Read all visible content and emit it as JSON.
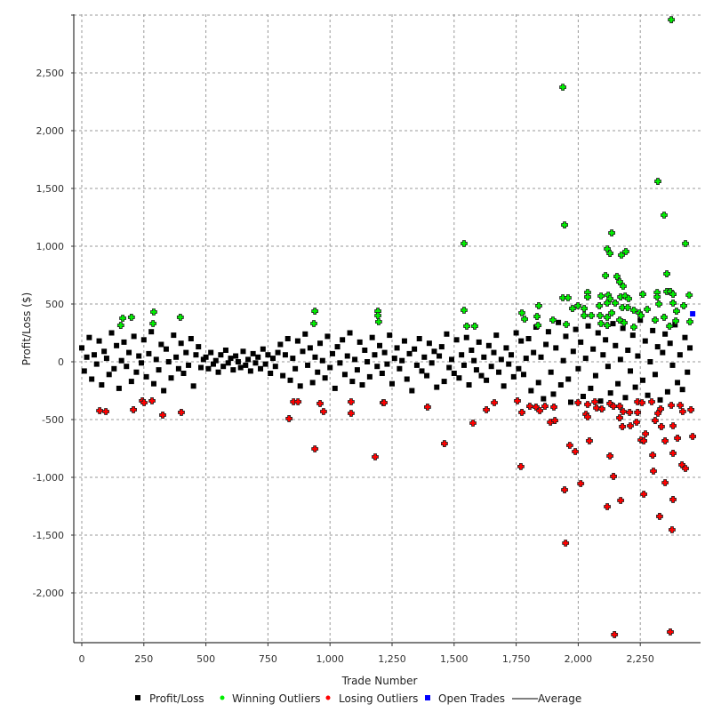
{
  "chart_data": {
    "type": "scatter",
    "title": "",
    "xlabel": "Trade Number",
    "ylabel": "Profit/Loss ($)",
    "xlim": [
      -30,
      2493
    ],
    "ylim": [
      -2431,
      3000
    ],
    "grid": true,
    "legend_placement": "bottom",
    "xticks": [
      0,
      250,
      500,
      750,
      1000,
      1250,
      1500,
      1750,
      2000,
      2250
    ],
    "xtick_labels": [
      "0",
      "250",
      "500",
      "750",
      "1,000",
      "1,250",
      "1,500",
      "1,750",
      "2,000",
      "2,250"
    ],
    "ygrid": [
      -2000,
      -1500,
      -1000,
      -500,
      0,
      500,
      1000,
      1500,
      2000,
      2500,
      3000
    ],
    "yticks": [
      -2000,
      -1500,
      -1000,
      -500,
      0,
      500,
      1000,
      1500,
      2000,
      2500
    ],
    "ytick_labels": [
      "-2,000",
      "-1,500",
      "-1,000",
      "-500",
      "0",
      "500",
      "1,000",
      "1,500",
      "2,000",
      "2,500"
    ],
    "legend": [
      {
        "label": "Profit/Loss",
        "color": "#000000",
        "marker": "square"
      },
      {
        "label": "Winning Outliers",
        "color": "#00ee00",
        "marker": "cross"
      },
      {
        "label": "Losing Outliers",
        "color": "#ff0000",
        "marker": "cross"
      },
      {
        "label": "Open Trades",
        "color": "#0000ff",
        "marker": "square"
      },
      {
        "label": "Average",
        "color": "#000000",
        "marker": "line"
      }
    ],
    "series": [
      {
        "name": "Profit/Loss",
        "color": "#000000",
        "x_step": 10,
        "y": [
          120,
          -80,
          40,
          210,
          -150,
          60,
          -20,
          180,
          -200,
          90,
          30,
          -110,
          250,
          -60,
          140,
          -230,
          10,
          170,
          -40,
          80,
          -170,
          220,
          -90,
          50,
          -10,
          190,
          -130,
          70,
          260,
          -190,
          20,
          -70,
          150,
          -250,
          110,
          0,
          -140,
          230,
          40,
          -60,
          160,
          -100,
          80,
          -30,
          200,
          -210,
          60,
          130,
          -50,
          20,
          40,
          -60,
          80,
          -20,
          10,
          -90,
          60,
          -40,
          100,
          -10,
          30,
          -70,
          50,
          0,
          -50,
          90,
          -30,
          20,
          -80,
          70,
          -10,
          40,
          -60,
          110,
          -20,
          60,
          -100,
          30,
          -40,
          80,
          150,
          -120,
          60,
          200,
          -160,
          30,
          -60,
          180,
          -210,
          90,
          240,
          -30,
          120,
          -180,
          40,
          -90,
          160,
          10,
          -140,
          220,
          -50,
          70,
          -230,
          130,
          -10,
          190,
          -110,
          50,
          250,
          -170,
          20,
          -70,
          170,
          -200,
          100,
          0,
          -130,
          210,
          60,
          -40,
          140,
          -100,
          80,
          -20,
          230,
          -190,
          30,
          120,
          -60,
          10,
          180,
          -150,
          70,
          -250,
          110,
          -30,
          200,
          -80,
          40,
          -120,
          160,
          -10,
          90,
          -220,
          50,
          130,
          -170,
          240,
          -50,
          20,
          -100,
          190,
          -140,
          60,
          -30,
          210,
          -200,
          100,
          10,
          -70,
          170,
          -120,
          40,
          -160,
          140,
          -40,
          80,
          230,
          -90,
          20,
          -210,
          120,
          -20,
          60,
          -130,
          250,
          -60,
          180,
          -110,
          30,
          200,
          -250,
          80,
          300,
          -180,
          40,
          -320,
          150,
          260,
          -90,
          -280,
          120,
          340,
          -200,
          10,
          220,
          -150,
          -350,
          90,
          280,
          -60,
          170,
          -300,
          30,
          310,
          -230,
          110,
          -120,
          250,
          -340,
          60,
          190,
          -40,
          -270,
          330,
          140,
          -190,
          20,
          290,
          -310,
          100,
          -80,
          230,
          -220,
          50,
          360,
          -160,
          180,
          -290,
          0,
          270,
          -110,
          130,
          -330,
          80,
          240,
          -260,
          160,
          -30,
          320,
          -180,
          60,
          -240,
          210,
          -90,
          120
        ]
      },
      {
        "name": "Winning Outliers",
        "color": "#00ee00",
        "points": [
          [
            157,
            315
          ],
          [
            165,
            377
          ],
          [
            200,
            385
          ],
          [
            290,
            431
          ],
          [
            287,
            331
          ],
          [
            397,
            385
          ],
          [
            939,
            438
          ],
          [
            935,
            331
          ],
          [
            1193,
            438
          ],
          [
            1193,
            400
          ],
          [
            1196,
            346
          ],
          [
            1540,
            1023
          ],
          [
            1540,
            446
          ],
          [
            1551,
            308
          ],
          [
            1583,
            308
          ],
          [
            1841,
            485
          ],
          [
            1773,
            423
          ],
          [
            1784,
            369
          ],
          [
            1834,
            392
          ],
          [
            1838,
            315
          ],
          [
            1898,
            361
          ],
          [
            2375,
            2960
          ],
          [
            1938,
            2376
          ],
          [
            2321,
            1561
          ],
          [
            2346,
            1269
          ],
          [
            2432,
            1023
          ],
          [
            1945,
            1184
          ],
          [
            2135,
            1115
          ],
          [
            2117,
            977
          ],
          [
            2128,
            938
          ],
          [
            2174,
            923
          ],
          [
            2192,
            954
          ],
          [
            2110,
            746
          ],
          [
            2156,
            738
          ],
          [
            2167,
            692
          ],
          [
            2181,
            654
          ],
          [
            2357,
            761
          ],
          [
            1938,
            554
          ],
          [
            1959,
            554
          ],
          [
            2038,
            600
          ],
          [
            2038,
            561
          ],
          [
            2092,
            569
          ],
          [
            2121,
            577
          ],
          [
            2128,
            546
          ],
          [
            2171,
            561
          ],
          [
            2189,
            569
          ],
          [
            2203,
            546
          ],
          [
            2260,
            584
          ],
          [
            2318,
            600
          ],
          [
            2318,
            561
          ],
          [
            2357,
            608
          ],
          [
            2371,
            608
          ],
          [
            2382,
            584
          ],
          [
            2447,
            577
          ],
          [
            1999,
            485
          ],
          [
            1977,
            461
          ],
          [
            2024,
            461
          ],
          [
            2085,
            485
          ],
          [
            2117,
            508
          ],
          [
            2149,
            508
          ],
          [
            2178,
            469
          ],
          [
            2199,
            469
          ],
          [
            2224,
            446
          ],
          [
            2246,
            423
          ],
          [
            2278,
            454
          ],
          [
            2325,
            500
          ],
          [
            2382,
            508
          ],
          [
            2396,
            438
          ],
          [
            2425,
            485
          ],
          [
            2024,
            400
          ],
          [
            2053,
            400
          ],
          [
            2088,
            400
          ],
          [
            2117,
            385
          ],
          [
            2135,
            423
          ],
          [
            2167,
            361
          ],
          [
            2185,
            338
          ],
          [
            2092,
            331
          ],
          [
            2117,
            315
          ],
          [
            2224,
            300
          ],
          [
            2253,
            400
          ],
          [
            2310,
            361
          ],
          [
            2346,
            385
          ],
          [
            2368,
            308
          ],
          [
            2393,
            354
          ],
          [
            2450,
            346
          ],
          [
            1952,
            323
          ]
        ]
      },
      {
        "name": "Losing Outliers",
        "color": "#ff0000",
        "points": [
          [
            72,
            -423
          ],
          [
            97,
            -431
          ],
          [
            208,
            -415
          ],
          [
            244,
            -338
          ],
          [
            251,
            -354
          ],
          [
            283,
            -338
          ],
          [
            326,
            -461
          ],
          [
            401,
            -438
          ],
          [
            835,
            -492
          ],
          [
            853,
            -346
          ],
          [
            871,
            -346
          ],
          [
            960,
            -361
          ],
          [
            974,
            -431
          ],
          [
            939,
            -754
          ],
          [
            1085,
            -346
          ],
          [
            1085,
            -446
          ],
          [
            1214,
            -354
          ],
          [
            1182,
            -823
          ],
          [
            1218,
            -354
          ],
          [
            1393,
            -392
          ],
          [
            1461,
            -708
          ],
          [
            1576,
            -531
          ],
          [
            1630,
            -415
          ],
          [
            1662,
            -354
          ],
          [
            1769,
            -907
          ],
          [
            1755,
            -338
          ],
          [
            1773,
            -438
          ],
          [
            1805,
            -385
          ],
          [
            1830,
            -392
          ],
          [
            1845,
            -423
          ],
          [
            1866,
            -385
          ],
          [
            1902,
            -392
          ],
          [
            1888,
            -523
          ],
          [
            1906,
            -508
          ],
          [
            1999,
            -354
          ],
          [
            2038,
            -369
          ],
          [
            2031,
            -454
          ],
          [
            2038,
            -477
          ],
          [
            2067,
            -346
          ],
          [
            2074,
            -400
          ],
          [
            2095,
            -408
          ],
          [
            2128,
            -361
          ],
          [
            2142,
            -385
          ],
          [
            2167,
            -385
          ],
          [
            2181,
            -431
          ],
          [
            2167,
            -485
          ],
          [
            2178,
            -561
          ],
          [
            2207,
            -438
          ],
          [
            2210,
            -554
          ],
          [
            2239,
            -438
          ],
          [
            2235,
            -523
          ],
          [
            2239,
            -346
          ],
          [
            2257,
            -354
          ],
          [
            2296,
            -346
          ],
          [
            2310,
            -508
          ],
          [
            2321,
            -446
          ],
          [
            2332,
            -408
          ],
          [
            2335,
            -561
          ],
          [
            2375,
            -377
          ],
          [
            2382,
            -554
          ],
          [
            2411,
            -377
          ],
          [
            2421,
            -431
          ],
          [
            2454,
            -415
          ],
          [
            2271,
            -623
          ],
          [
            2253,
            -677
          ],
          [
            2264,
            -684
          ],
          [
            2045,
            -684
          ],
          [
            1966,
            -723
          ],
          [
            1988,
            -777
          ],
          [
            2128,
            -815
          ],
          [
            2350,
            -684
          ],
          [
            2400,
            -661
          ],
          [
            2461,
            -646
          ],
          [
            2300,
            -808
          ],
          [
            2382,
            -792
          ],
          [
            2418,
            -892
          ],
          [
            2432,
            -923
          ],
          [
            2303,
            -946
          ],
          [
            2142,
            -992
          ],
          [
            2010,
            -1054
          ],
          [
            1945,
            -1108
          ],
          [
            2264,
            -1146
          ],
          [
            2350,
            -1046
          ],
          [
            2171,
            -1200
          ],
          [
            2117,
            -1254
          ],
          [
            2382,
            -1192
          ],
          [
            2328,
            -1338
          ],
          [
            2378,
            -1454
          ],
          [
            1949,
            -1569
          ],
          [
            2146,
            -2361
          ],
          [
            2371,
            -2338
          ]
        ]
      },
      {
        "name": "Open Trades",
        "color": "#0000ff",
        "points": [
          [
            2461,
            415
          ]
        ]
      }
    ]
  }
}
